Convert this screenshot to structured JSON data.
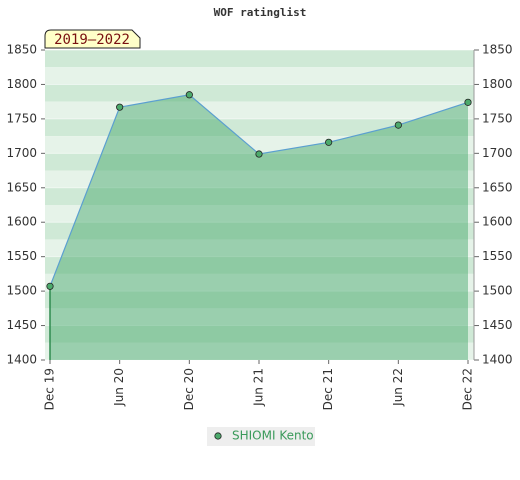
{
  "chart_data": {
    "type": "line",
    "title": "WOF ratinglist",
    "badge": "2019–2022",
    "categories": [
      "Dec 19",
      "Jun 20",
      "Dec 20",
      "Jun 21",
      "Dec 21",
      "Jun 22",
      "Dec 22"
    ],
    "series": [
      {
        "name": "SHIOMI Kento",
        "color": "#5b9fd0",
        "marker_color": "#4caa6c",
        "fill": "#3ea566",
        "values": [
          1507,
          1767,
          1785,
          1699,
          1716,
          1741,
          1774
        ]
      }
    ],
    "ylim": [
      1400,
      1850
    ],
    "yticks": [
      1400,
      1450,
      1500,
      1550,
      1600,
      1650,
      1700,
      1750,
      1800,
      1850
    ],
    "y2lim": [
      1400,
      1850
    ],
    "y2ticks": [
      1400,
      1450,
      1500,
      1550,
      1600,
      1650,
      1700,
      1750,
      1800,
      1850
    ],
    "grid": true,
    "legend": "bottom"
  }
}
